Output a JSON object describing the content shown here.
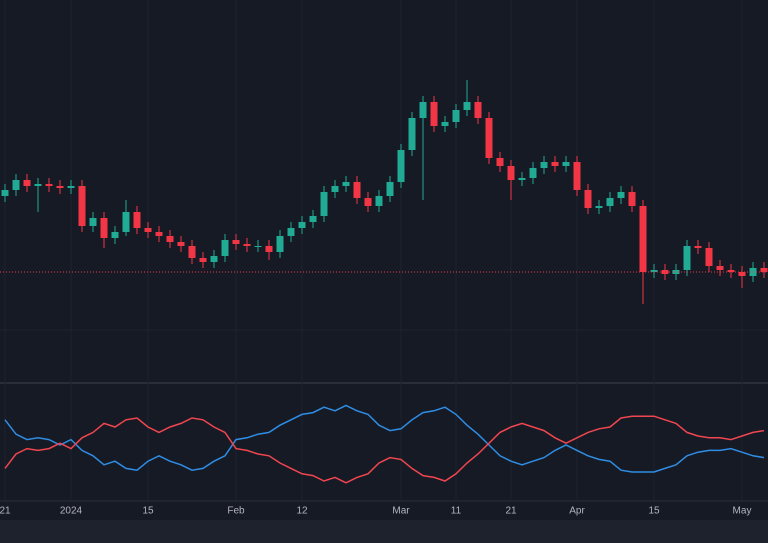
{
  "chart_data": {
    "type": "candlestick",
    "categories": [
      "21",
      null,
      null,
      null,
      null,
      null,
      "2024",
      null,
      null,
      null,
      null,
      null,
      null,
      "15",
      null,
      null,
      null,
      null,
      null,
      null,
      null,
      "Feb",
      null,
      null,
      null,
      null,
      null,
      "12",
      null,
      null,
      null,
      null,
      null,
      null,
      null,
      null,
      "Mar",
      null,
      null,
      null,
      null,
      "11",
      null,
      null,
      null,
      null,
      "21",
      null,
      null,
      null,
      null,
      null,
      "Apr",
      null,
      null,
      null,
      null,
      null,
      null,
      "15",
      null,
      null,
      null,
      null,
      null,
      null,
      null,
      "May",
      null,
      null
    ],
    "open": [
      51,
      52.5,
      55,
      53.5,
      54,
      53.5,
      53,
      53.5,
      43.5,
      45.5,
      40.5,
      42,
      47,
      43,
      42,
      41,
      39.5,
      38.5,
      35.5,
      34.5,
      36,
      40,
      39,
      38.5,
      38.5,
      37,
      41,
      43,
      44.5,
      46,
      52,
      53.5,
      54.5,
      50.5,
      48.5,
      51,
      54.5,
      62.5,
      70.5,
      74.5,
      68.5,
      69.5,
      72.5,
      74.5,
      70.5,
      60.5,
      58.5,
      55,
      55.5,
      58,
      59.5,
      58.5,
      59.5,
      52.5,
      48,
      48.5,
      50.5,
      52,
      48.5,
      32,
      32.5,
      31.5,
      32.5,
      38.5,
      38,
      33.5,
      32.5,
      32,
      31,
      33
    ],
    "high": [
      54,
      56.5,
      56.5,
      55.5,
      55.5,
      55,
      55,
      55,
      47,
      47,
      43.5,
      50,
      48.5,
      44.5,
      43.5,
      42.5,
      41,
      40,
      37,
      37.5,
      41.5,
      41.5,
      40.5,
      40,
      40,
      42.5,
      44.5,
      46,
      47.5,
      53.5,
      55,
      56,
      56,
      52,
      52.5,
      56,
      64,
      72,
      76,
      76,
      71,
      74,
      80,
      76,
      72,
      62,
      60,
      57,
      59.5,
      61,
      61,
      61,
      61,
      54,
      50,
      52,
      53.5,
      53.5,
      50,
      34,
      34,
      34,
      40,
      40,
      39.5,
      35,
      34,
      33.5,
      34.5,
      34.5
    ],
    "low": [
      49.5,
      51,
      52,
      47,
      52,
      51.5,
      51.5,
      42,
      42,
      38,
      39,
      41,
      41.5,
      40.5,
      39.5,
      38,
      37,
      34,
      33,
      33,
      34.5,
      37.5,
      37,
      37,
      35,
      35.5,
      39.5,
      41.5,
      43,
      44.5,
      50.5,
      52,
      49,
      47,
      47,
      49.5,
      53,
      61,
      50,
      67,
      67,
      68,
      71,
      69,
      59,
      57,
      50,
      53.5,
      54,
      56.5,
      57,
      57,
      51,
      46.5,
      46.5,
      47,
      49,
      47,
      24,
      30.5,
      30,
      30,
      31,
      36.5,
      32,
      31,
      30.5,
      28,
      29.5,
      30.5
    ],
    "close": [
      52.5,
      55,
      53.5,
      54,
      53.5,
      53,
      53.5,
      43.5,
      45.5,
      40.5,
      42,
      47,
      43,
      42,
      41,
      39.5,
      38.5,
      35.5,
      34.5,
      36,
      40,
      39,
      38.5,
      38.5,
      37,
      41,
      43,
      44.5,
      46,
      52,
      53.5,
      54.5,
      50.5,
      48.5,
      51,
      54.5,
      62.5,
      70.5,
      74.5,
      68.5,
      69.5,
      72.5,
      74.5,
      70.5,
      60.5,
      58.5,
      55,
      55.5,
      58,
      59.5,
      58.5,
      59.5,
      52.5,
      48,
      48.5,
      50.5,
      52,
      48.5,
      32,
      32.5,
      31.5,
      32.5,
      38.5,
      38,
      33.5,
      32.5,
      32,
      31,
      33,
      32
    ],
    "up_color": "#22ab94",
    "down_color": "#f23645",
    "ylim": [
      5,
      100
    ],
    "last_price": 32,
    "y2lim": [
      0.75,
      1.25
    ],
    "series": [
      {
        "color": "#2f8de4",
        "axis": "y2",
        "values": [
          1.14,
          1.06,
          1.03,
          1.04,
          1.03,
          1.0,
          1.03,
          0.97,
          0.94,
          0.89,
          0.91,
          0.87,
          0.86,
          0.91,
          0.94,
          0.91,
          0.89,
          0.86,
          0.87,
          0.91,
          0.94,
          1.03,
          1.04,
          1.06,
          1.07,
          1.11,
          1.14,
          1.17,
          1.18,
          1.21,
          1.19,
          1.22,
          1.19,
          1.17,
          1.11,
          1.08,
          1.09,
          1.14,
          1.18,
          1.19,
          1.21,
          1.17,
          1.11,
          1.06,
          1.0,
          0.94,
          0.91,
          0.89,
          0.91,
          0.93,
          0.97,
          1.0,
          0.97,
          0.94,
          0.92,
          0.91,
          0.86,
          0.85,
          0.85,
          0.85,
          0.87,
          0.89,
          0.94,
          0.96,
          0.97,
          0.97,
          0.98,
          0.96,
          0.94,
          0.93
        ]
      },
      {
        "color": "#f0464f",
        "axis": "y2",
        "values": [
          0.87,
          0.95,
          0.98,
          0.97,
          0.98,
          1.01,
          0.98,
          1.04,
          1.07,
          1.12,
          1.1,
          1.14,
          1.15,
          1.1,
          1.07,
          1.1,
          1.12,
          1.15,
          1.14,
          1.1,
          1.07,
          0.98,
          0.97,
          0.95,
          0.94,
          0.9,
          0.87,
          0.84,
          0.83,
          0.8,
          0.82,
          0.79,
          0.82,
          0.84,
          0.9,
          0.93,
          0.92,
          0.87,
          0.83,
          0.82,
          0.8,
          0.84,
          0.9,
          0.95,
          1.01,
          1.07,
          1.1,
          1.12,
          1.1,
          1.08,
          1.04,
          1.01,
          1.04,
          1.07,
          1.09,
          1.1,
          1.15,
          1.16,
          1.16,
          1.16,
          1.14,
          1.12,
          1.07,
          1.05,
          1.04,
          1.04,
          1.03,
          1.05,
          1.07,
          1.08
        ]
      }
    ]
  }
}
